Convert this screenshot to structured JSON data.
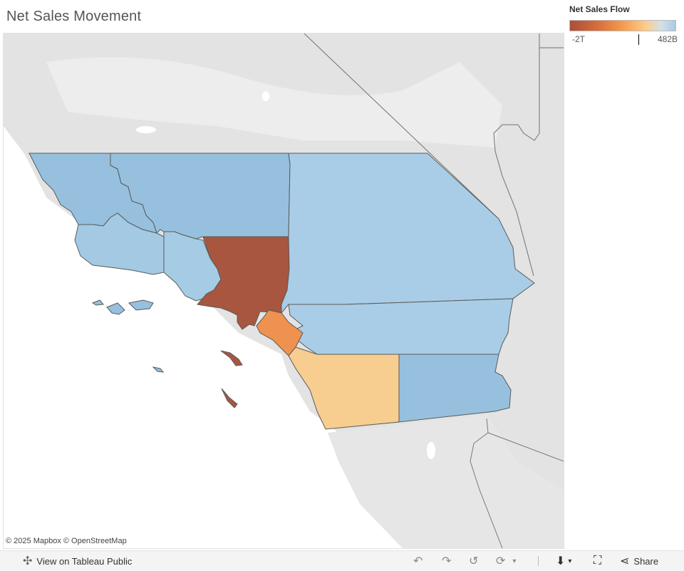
{
  "title": "Net Sales Movement",
  "legend": {
    "title": "Net Sales Flow",
    "min_label": "-2T",
    "max_label": "482B",
    "marker_value": "0",
    "colors": {
      "negative": "#a8503a",
      "mid_negative": "#f59b4f",
      "light": "#fbcd8a",
      "positive": "#a9cbe3"
    }
  },
  "attribution": "© 2025 Mapbox  © OpenStreetMap",
  "map": {
    "colors": {
      "land": "#e3e3e3",
      "water": "#ffffff",
      "county_border": "#5a5a5a"
    }
  },
  "toolbar": {
    "view_label": "View on Tableau Public",
    "share_label": "Share"
  }
}
